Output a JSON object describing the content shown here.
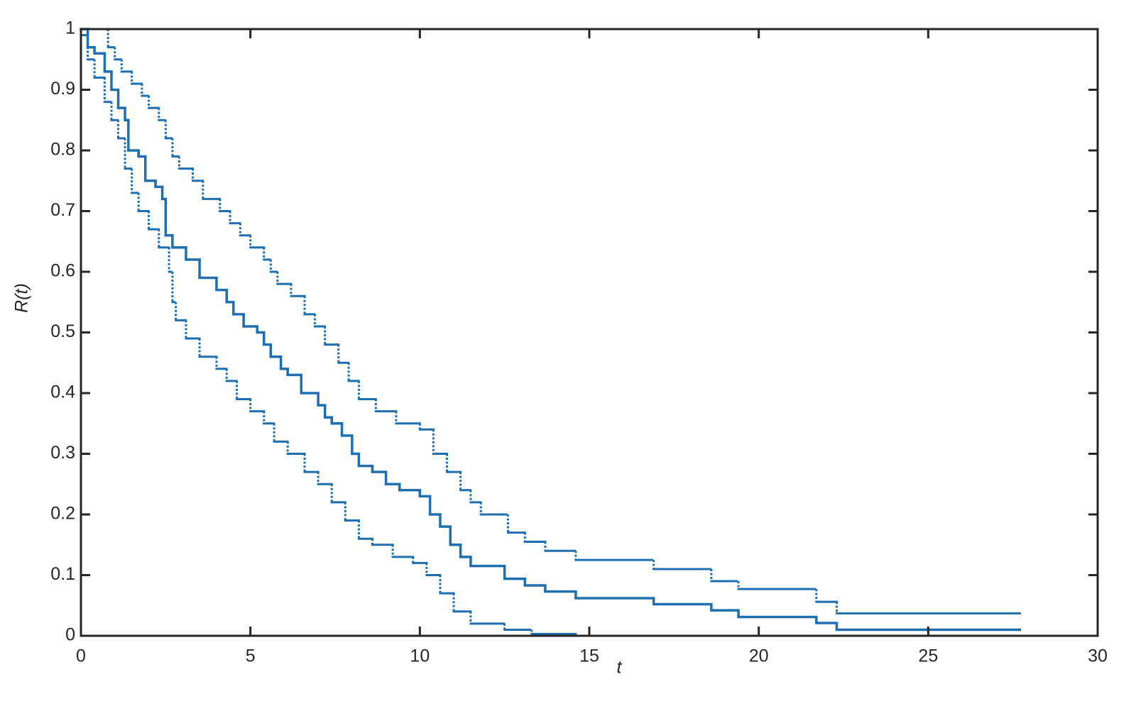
{
  "chart_data": {
    "type": "line",
    "drawstyle": "steps-post",
    "x_label": "t",
    "y_label": "R(t)",
    "xlim": [
      0,
      30
    ],
    "xticks": [
      0,
      5,
      10,
      15,
      20,
      25,
      30
    ],
    "ylim": [
      0,
      1
    ],
    "yticks": [
      0,
      0.1,
      0.2,
      0.3,
      0.4,
      0.5,
      0.6,
      0.7,
      0.8,
      0.9,
      1
    ],
    "grid": false,
    "series": [
      {
        "color": "#1f6fb0",
        "linestyle": "solid",
        "x": [
          0,
          0.2,
          0.4,
          0.7,
          0.9,
          1.1,
          1.3,
          1.4,
          1.7,
          1.9,
          2.2,
          2.4,
          2.5,
          2.7,
          3.1,
          3.5,
          4.0,
          4.3,
          4.5,
          4.8,
          5.2,
          5.4,
          5.6,
          5.9,
          6.1,
          6.5,
          7.0,
          7.2,
          7.4,
          7.7,
          8.0,
          8.2,
          8.6,
          9.0,
          9.4,
          10.0,
          10.3,
          10.6,
          10.9,
          11.2,
          11.5,
          12.5,
          13.1,
          13.7,
          14.6,
          16.9,
          18.6,
          19.4,
          21.7,
          22.3,
          27.7
        ],
        "values": [
          1.0,
          0.97,
          0.96,
          0.93,
          0.9,
          0.87,
          0.85,
          0.8,
          0.79,
          0.75,
          0.74,
          0.72,
          0.66,
          0.64,
          0.62,
          0.59,
          0.57,
          0.55,
          0.53,
          0.51,
          0.5,
          0.48,
          0.46,
          0.44,
          0.43,
          0.4,
          0.38,
          0.36,
          0.35,
          0.33,
          0.3,
          0.28,
          0.27,
          0.25,
          0.24,
          0.23,
          0.2,
          0.18,
          0.15,
          0.13,
          0.115,
          0.094,
          0.083,
          0.073,
          0.062,
          0.052,
          0.042,
          0.031,
          0.021,
          0.01,
          0.01
        ]
      },
      {
        "color": "#1f6fb0",
        "linestyle": "dotted",
        "x": [
          0,
          0.8,
          1.0,
          1.2,
          1.5,
          1.8,
          2.0,
          2.3,
          2.5,
          2.7,
          2.9,
          3.3,
          3.6,
          4.1,
          4.4,
          4.7,
          5.0,
          5.4,
          5.6,
          5.8,
          6.2,
          6.6,
          6.9,
          7.2,
          7.6,
          7.9,
          8.2,
          8.7,
          9.3,
          10.0,
          10.4,
          10.8,
          11.2,
          11.5,
          11.8,
          12.6,
          13.1,
          13.7,
          14.6,
          16.9,
          18.6,
          19.4,
          21.7,
          22.3,
          27.7
        ],
        "values": [
          1.0,
          0.97,
          0.95,
          0.93,
          0.91,
          0.89,
          0.87,
          0.85,
          0.82,
          0.79,
          0.77,
          0.75,
          0.72,
          0.7,
          0.68,
          0.66,
          0.64,
          0.62,
          0.6,
          0.58,
          0.56,
          0.53,
          0.51,
          0.48,
          0.45,
          0.42,
          0.39,
          0.37,
          0.35,
          0.34,
          0.3,
          0.27,
          0.24,
          0.22,
          0.2,
          0.17,
          0.155,
          0.14,
          0.125,
          0.11,
          0.09,
          0.077,
          0.056,
          0.037,
          0.037
        ]
      },
      {
        "color": "#1f6fb0",
        "linestyle": "dotted",
        "x": [
          0,
          0.2,
          0.4,
          0.7,
          0.9,
          1.1,
          1.3,
          1.5,
          1.7,
          2.0,
          2.3,
          2.6,
          2.7,
          2.8,
          3.1,
          3.5,
          4.0,
          4.3,
          4.6,
          5.0,
          5.4,
          5.7,
          6.1,
          6.6,
          7.0,
          7.4,
          7.8,
          8.2,
          8.6,
          9.2,
          9.8,
          10.2,
          10.6,
          11.0,
          11.5,
          12.5,
          13.3,
          14.6,
          27.7
        ],
        "values": [
          0.99,
          0.95,
          0.92,
          0.88,
          0.85,
          0.82,
          0.77,
          0.73,
          0.7,
          0.67,
          0.64,
          0.6,
          0.55,
          0.52,
          0.49,
          0.46,
          0.44,
          0.42,
          0.39,
          0.37,
          0.35,
          0.32,
          0.3,
          0.27,
          0.25,
          0.22,
          0.19,
          0.16,
          0.15,
          0.13,
          0.12,
          0.1,
          0.07,
          0.04,
          0.02,
          0.01,
          0.003,
          0,
          0
        ]
      }
    ]
  }
}
